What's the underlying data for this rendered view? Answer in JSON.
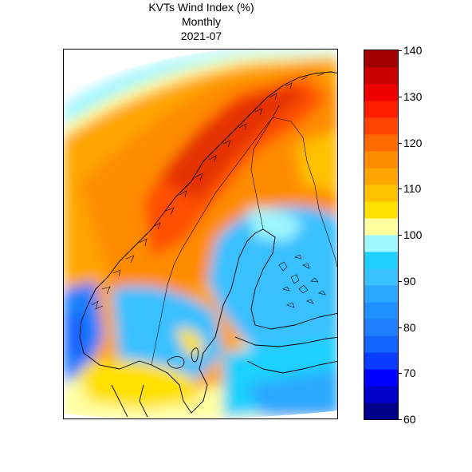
{
  "title": {
    "line1": "KVTs Wind Index (%)",
    "line2": "Monthly",
    "line3": "2021-07"
  },
  "colorbar": {
    "min": 60,
    "max": 140,
    "tick_labels": [
      "140",
      "130",
      "120",
      "110",
      "100",
      "90",
      "80",
      "70",
      "60"
    ],
    "bands": [
      "#00008b",
      "#0000cd",
      "#0000ff",
      "#0a3cff",
      "#1464ff",
      "#1e7fff",
      "#1e90ff",
      "#2aa8ff",
      "#38c0ff",
      "#1ed0ff",
      "#9ff6ff",
      "#ffffa0",
      "#ffe000",
      "#ffc000",
      "#ffa500",
      "#ff8c00",
      "#ff6a00",
      "#ff4500",
      "#ff2000",
      "#ee0000",
      "#cc0000",
      "#a00000"
    ]
  },
  "colors": {
    "ocean_north": "#ffb400",
    "land_south": "#38c0ff",
    "high_mountain": "#d84000"
  }
}
